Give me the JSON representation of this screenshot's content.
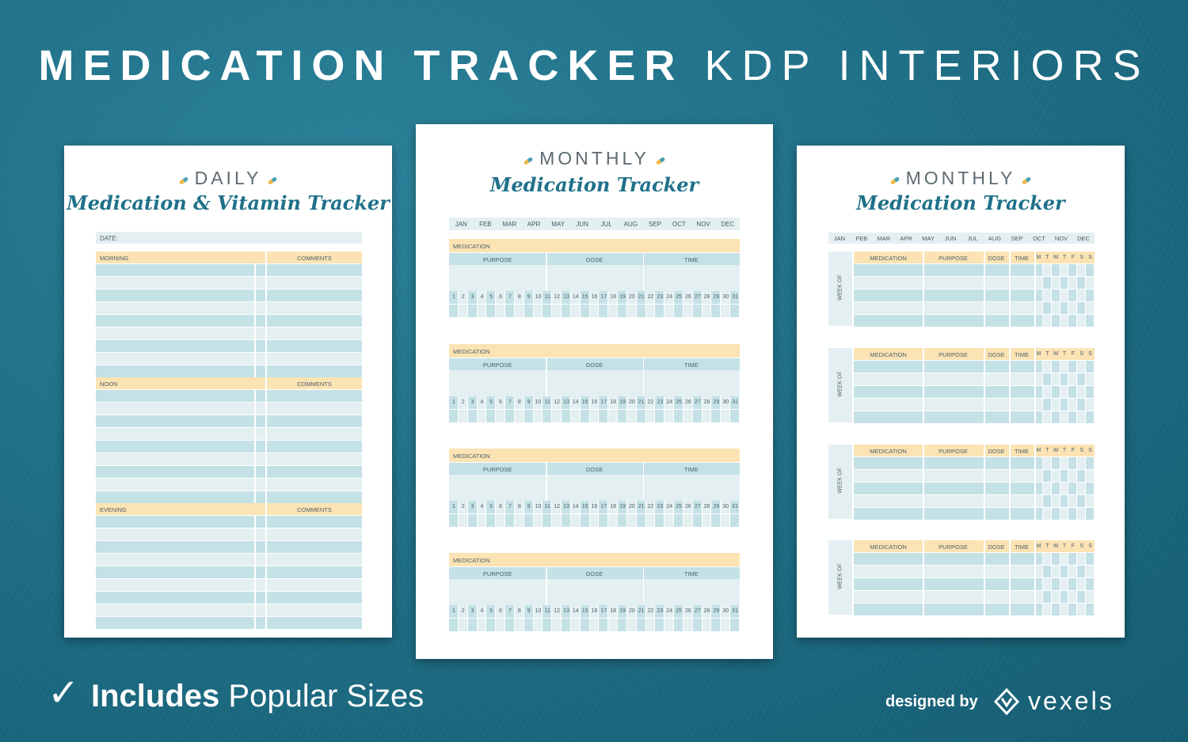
{
  "title": {
    "bold": "MEDICATION TRACKER",
    "light": "KDP INTERIORS"
  },
  "daily": {
    "heading": "DAILY",
    "subtitle": "Medication & Vitamin Tracker",
    "date_label": "DATE:",
    "sections": [
      {
        "label": "MORNING",
        "comments": "COMMENTS"
      },
      {
        "label": "NOON",
        "comments": "COMMENTS"
      },
      {
        "label": "EVENING",
        "comments": "COMMENTS"
      }
    ]
  },
  "monthly_a": {
    "heading": "MONTHLY",
    "subtitle": "Medication Tracker",
    "months": [
      "JAN",
      "FEB",
      "MAR",
      "APR",
      "MAY",
      "JUN",
      "JUL",
      "AUG",
      "SEP",
      "OCT",
      "NOV",
      "DEC"
    ],
    "blocks": [
      {
        "label": "MEDICATION",
        "purpose": "PURPOSE",
        "dose": "DOSE",
        "time": "TIME"
      },
      {
        "label": "MEDICATION",
        "purpose": "PURPOSE",
        "dose": "DOSE",
        "time": "TIME"
      },
      {
        "label": "MEDICATION",
        "purpose": "PURPOSE",
        "dose": "DOSE",
        "time": "TIME"
      },
      {
        "label": "MEDICATION",
        "purpose": "PURPOSE",
        "dose": "DOSE",
        "time": "TIME"
      }
    ],
    "days": [
      "1",
      "2",
      "3",
      "4",
      "5",
      "6",
      "7",
      "8",
      "9",
      "10",
      "11",
      "12",
      "13",
      "14",
      "15",
      "16",
      "17",
      "18",
      "19",
      "20",
      "21",
      "22",
      "23",
      "24",
      "25",
      "26",
      "27",
      "28",
      "29",
      "30",
      "31"
    ]
  },
  "monthly_b": {
    "heading": "MONTHLY",
    "subtitle": "Medication Tracker",
    "months": [
      "JAN",
      "FEB",
      "MAR",
      "APR",
      "MAY",
      "JUN",
      "JUL",
      "AUG",
      "SEP",
      "OCT",
      "NOV",
      "DEC"
    ],
    "weeks": [
      {
        "week_label": "WEEK OF",
        "medication": "MEDICATION",
        "purpose": "PURPOSE",
        "dose": "DOSE",
        "time": "TIME"
      },
      {
        "week_label": "WEEK OF",
        "medication": "MEDICATION",
        "purpose": "PURPOSE",
        "dose": "DOSE",
        "time": "TIME"
      },
      {
        "week_label": "WEEK OF",
        "medication": "MEDICATION",
        "purpose": "PURPOSE",
        "dose": "DOSE",
        "time": "TIME"
      },
      {
        "week_label": "WEEK OF",
        "medication": "MEDICATION",
        "purpose": "PURPOSE",
        "dose": "DOSE",
        "time": "TIME"
      }
    ],
    "weekdays": [
      "M",
      "T",
      "W",
      "T",
      "F",
      "S",
      "S"
    ]
  },
  "footer": {
    "check": "✓",
    "includes": "Includes",
    "popular": "Popular Sizes",
    "designed_by": "designed by",
    "brand": "vexels"
  },
  "colors": {
    "background": "#1f6f85",
    "header_yellow": "#fbe3b4",
    "row_blue": "#c4e1e6",
    "row_light": "#e4eff1",
    "script_teal": "#1f7189"
  }
}
